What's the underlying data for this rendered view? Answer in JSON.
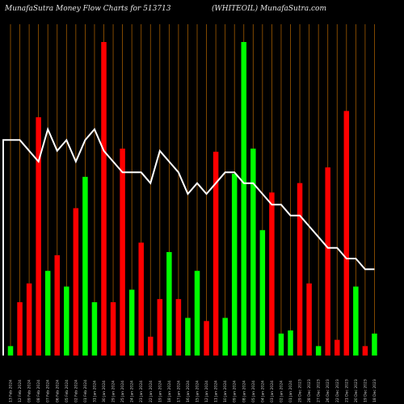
{
  "title_left": "MunafaSutra  Money Flow  Charts for 513713",
  "title_right": "(WHITEOIL)  MunafaSutra.com",
  "colors": {
    "up": "#00ff00",
    "down": "#ff0000",
    "grid": "#a05a00",
    "line": "#ffffff",
    "background": "#000000"
  },
  "chart_data": {
    "type": "bar",
    "title": "MunafaSutra  Money Flow  Charts for 513713",
    "subtitle": "(WHITEOIL)  MunafaSutra.com",
    "ylim": [
      0,
      100
    ],
    "categories": [
      "13 Feb 2024",
      "12 Feb 2024",
      "09 Feb 2024",
      "08 Feb 2024",
      "07 Feb 2024",
      "06 Feb 2024",
      "05 Feb 2024",
      "02 Feb 2024",
      "01 Feb 2024",
      "31 Jan 2024",
      "30 Jan 2024",
      "29 Jan 2024",
      "25 Jan 2024",
      "24 Jan 2024",
      "23 Jan 2024",
      "22 Jan 2024",
      "19 Jan 2024",
      "18 Jan 2024",
      "17 Jan 2024",
      "16 Jan 2024",
      "15 Jan 2024",
      "12 Jan 2024",
      "11 Jan 2024",
      "10 Jan 2024",
      "09 Jan 2024",
      "08 Jan 2024",
      "05 Jan 2024",
      "04 Jan 2024",
      "03 Jan 2024",
      "02 Jan 2024",
      "01 Jan 2024",
      "29 Dec 2023",
      "28 Dec 2023",
      "27 Dec 2023",
      "26 Dec 2023",
      "22 Dec 2023",
      "21 Dec 2023",
      "20 Dec 2023",
      "19 Dec 2023",
      "18 Dec 2023"
    ],
    "bar_values": [
      3,
      17,
      23,
      76,
      27,
      32,
      22,
      47,
      57,
      17,
      100,
      17,
      66,
      21,
      36,
      6,
      18,
      33,
      18,
      12,
      27,
      11,
      65,
      12,
      58,
      100,
      66,
      40,
      52,
      7,
      8,
      55,
      23,
      3,
      60,
      5,
      78,
      22,
      3,
      7
    ],
    "bar_colors": [
      "green",
      "red",
      "red",
      "red",
      "green",
      "red",
      "green",
      "red",
      "green",
      "green",
      "red",
      "red",
      "red",
      "green",
      "red",
      "red",
      "red",
      "green",
      "red",
      "green",
      "green",
      "red",
      "red",
      "green",
      "green",
      "green",
      "green",
      "green",
      "red",
      "green",
      "green",
      "red",
      "red",
      "green",
      "red",
      "red",
      "red",
      "green",
      "red",
      "green"
    ],
    "line_values": [
      80,
      80,
      79,
      78,
      81,
      79,
      80,
      78,
      80,
      81,
      79,
      78,
      77,
      77,
      77,
      76,
      79,
      78,
      77,
      75,
      76,
      75,
      76,
      77,
      77,
      76,
      76,
      75,
      74,
      74,
      73,
      73,
      72,
      71,
      70,
      70,
      69,
      69,
      68,
      68
    ]
  }
}
